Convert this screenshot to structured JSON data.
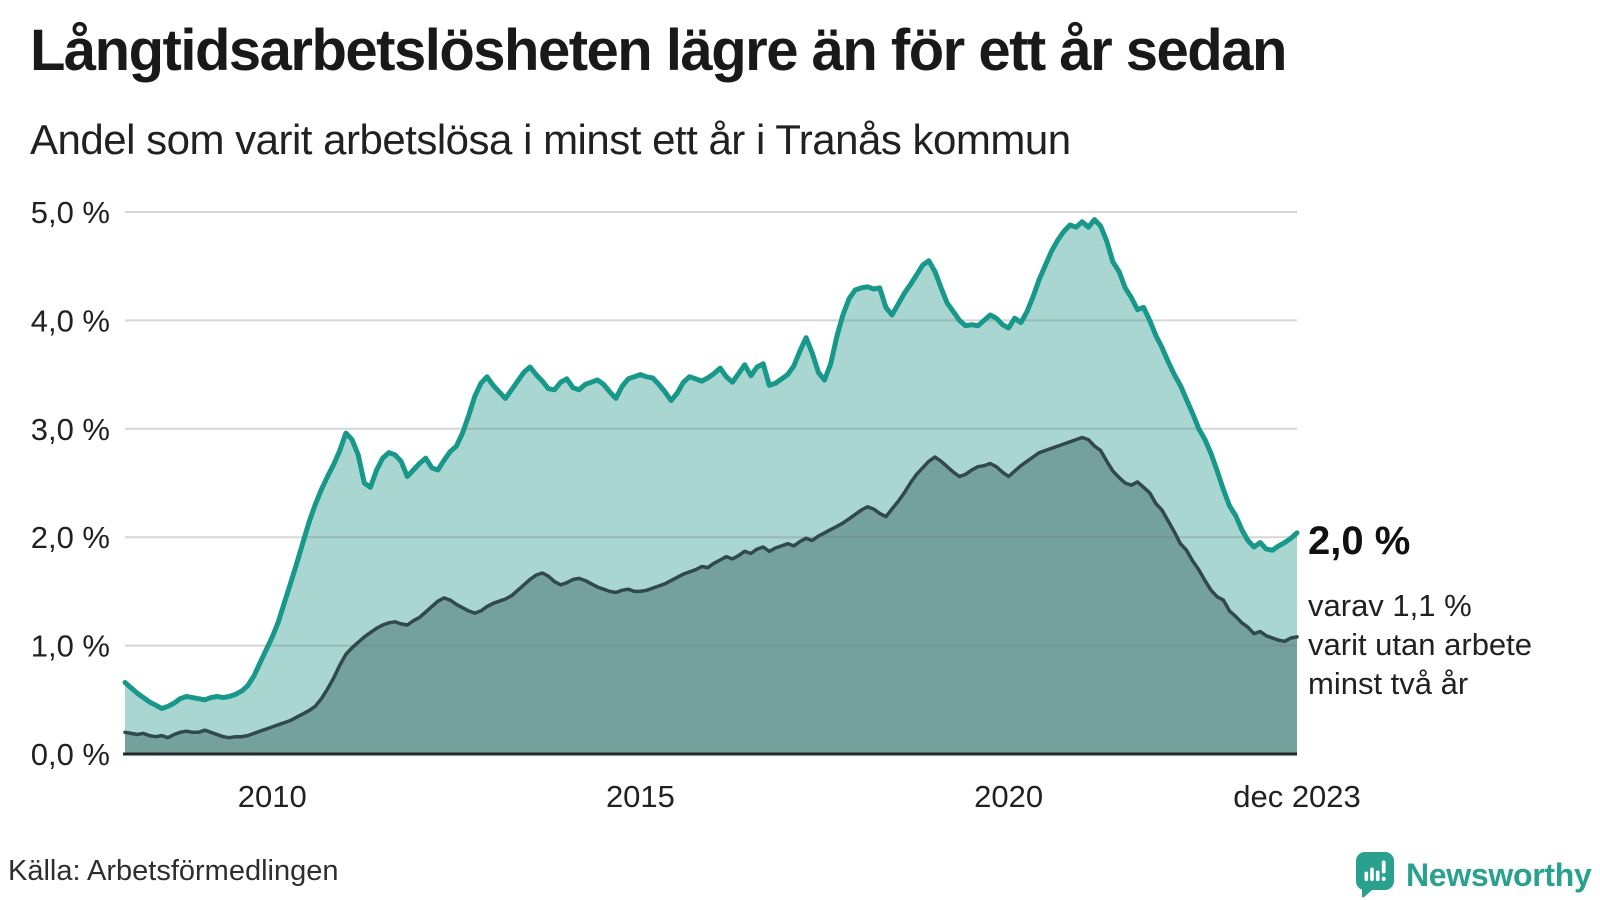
{
  "header": {
    "title": "Långtidsarbetslösheten lägre än för ett år sedan",
    "subtitle": "Andel som varit arbetslösa i minst ett år i Tranås kommun"
  },
  "annotations": {
    "end_value_total": "2,0 %",
    "note_lines": {
      "0": "varav 1,1 %",
      "1": "varit utan arbete",
      "2": "minst två år"
    }
  },
  "footer": {
    "source": "Källa: Arbetsförmedlingen",
    "brand": "Newsworthy"
  },
  "colors": {
    "title_text": "#191919",
    "body_text": "#212121",
    "gridline": "#d9dcde",
    "axis_line": "#20282a",
    "series_total_line": "#18988a",
    "series_total_fill": "#a9d6d0",
    "series_twoyear_line": "#31494a",
    "series_twoyear_fill": "#74a19c",
    "brand_teal": "#2aa08f"
  },
  "chart_data": {
    "type": "area",
    "title": "Långtidsarbetslösheten lägre än för ett år sedan",
    "subtitle": "Andel som varit arbetslösa i minst ett år i Tranås kommun",
    "x_start": "2008-01",
    "x_end": "2023-12",
    "frequency": "monthly",
    "ylim": [
      0,
      5
    ],
    "grid": "horizontal",
    "legend": "none (direct end-of-line labels)",
    "y_ticks": [
      {
        "v": 0,
        "label": "0,0 %"
      },
      {
        "v": 1,
        "label": "1,0 %"
      },
      {
        "v": 2,
        "label": "2,0 %"
      },
      {
        "v": 3,
        "label": "3,0 %"
      },
      {
        "v": 4,
        "label": "4,0 %"
      },
      {
        "v": 5,
        "label": "5,0 %"
      }
    ],
    "x_ticks": [
      {
        "month_index": 24,
        "label": "2010"
      },
      {
        "month_index": 84,
        "label": "2015"
      },
      {
        "month_index": 144,
        "label": "2020"
      },
      {
        "month_index": 191,
        "label": "dec 2023"
      }
    ],
    "series": [
      {
        "name": "Andel som varit arbetslösa i minst ett år",
        "end_label": "2,0 %",
        "color": "#18988a",
        "fill": "#a9d6d0",
        "line_width": 5,
        "values": [
          0.66,
          0.61,
          0.56,
          0.52,
          0.48,
          0.45,
          0.42,
          0.44,
          0.47,
          0.51,
          0.53,
          0.52,
          0.51,
          0.5,
          0.52,
          0.53,
          0.52,
          0.53,
          0.55,
          0.58,
          0.63,
          0.72,
          0.84,
          0.96,
          1.08,
          1.22,
          1.4,
          1.58,
          1.76,
          1.95,
          2.14,
          2.3,
          2.44,
          2.56,
          2.67,
          2.8,
          2.96,
          2.9,
          2.76,
          2.5,
          2.46,
          2.62,
          2.73,
          2.78,
          2.76,
          2.7,
          2.56,
          2.62,
          2.68,
          2.73,
          2.64,
          2.62,
          2.71,
          2.79,
          2.84,
          2.96,
          3.12,
          3.3,
          3.42,
          3.48,
          3.4,
          3.34,
          3.28,
          3.36,
          3.44,
          3.52,
          3.57,
          3.5,
          3.44,
          3.37,
          3.36,
          3.43,
          3.46,
          3.38,
          3.36,
          3.41,
          3.43,
          3.45,
          3.41,
          3.34,
          3.28,
          3.39,
          3.46,
          3.48,
          3.5,
          3.48,
          3.47,
          3.41,
          3.34,
          3.26,
          3.33,
          3.43,
          3.48,
          3.46,
          3.44,
          3.47,
          3.51,
          3.56,
          3.48,
          3.43,
          3.51,
          3.59,
          3.49,
          3.57,
          3.6,
          3.4,
          3.42,
          3.46,
          3.5,
          3.58,
          3.72,
          3.84,
          3.7,
          3.52,
          3.45,
          3.6,
          3.85,
          4.05,
          4.2,
          4.28,
          4.3,
          4.31,
          4.29,
          4.3,
          4.12,
          4.05,
          4.15,
          4.25,
          4.33,
          4.42,
          4.51,
          4.55,
          4.45,
          4.3,
          4.16,
          4.08,
          4.0,
          3.95,
          3.96,
          3.95,
          4.0,
          4.05,
          4.02,
          3.96,
          3.93,
          4.02,
          3.98,
          4.08,
          4.22,
          4.38,
          4.51,
          4.64,
          4.74,
          4.82,
          4.88,
          4.86,
          4.91,
          4.86,
          4.93,
          4.87,
          4.73,
          4.54,
          4.45,
          4.3,
          4.21,
          4.1,
          4.12,
          4.0,
          3.86,
          3.75,
          3.62,
          3.5,
          3.4,
          3.27,
          3.14,
          3.0,
          2.9,
          2.77,
          2.61,
          2.44,
          2.29,
          2.2,
          2.07,
          1.97,
          1.91,
          1.95,
          1.89,
          1.88,
          1.92,
          1.95,
          1.99,
          2.04
        ]
      },
      {
        "name": "varav varit utan arbete minst två år",
        "end_label": "varav 1,1 % varit utan arbete minst två år",
        "color": "#31494a",
        "fill": "#74a19c",
        "line_width": 3.5,
        "values": [
          0.2,
          0.19,
          0.18,
          0.19,
          0.17,
          0.16,
          0.17,
          0.15,
          0.18,
          0.2,
          0.21,
          0.2,
          0.2,
          0.22,
          0.2,
          0.18,
          0.16,
          0.15,
          0.16,
          0.16,
          0.17,
          0.19,
          0.21,
          0.23,
          0.25,
          0.27,
          0.29,
          0.31,
          0.34,
          0.37,
          0.4,
          0.44,
          0.51,
          0.6,
          0.7,
          0.82,
          0.92,
          0.98,
          1.03,
          1.08,
          1.12,
          1.16,
          1.19,
          1.21,
          1.22,
          1.2,
          1.19,
          1.23,
          1.26,
          1.31,
          1.36,
          1.41,
          1.44,
          1.42,
          1.38,
          1.35,
          1.32,
          1.3,
          1.32,
          1.36,
          1.39,
          1.41,
          1.43,
          1.46,
          1.51,
          1.56,
          1.61,
          1.65,
          1.67,
          1.64,
          1.59,
          1.56,
          1.58,
          1.61,
          1.62,
          1.6,
          1.57,
          1.54,
          1.52,
          1.5,
          1.49,
          1.51,
          1.52,
          1.5,
          1.5,
          1.51,
          1.53,
          1.55,
          1.57,
          1.6,
          1.63,
          1.66,
          1.68,
          1.7,
          1.73,
          1.72,
          1.76,
          1.79,
          1.82,
          1.8,
          1.83,
          1.87,
          1.85,
          1.89,
          1.91,
          1.87,
          1.9,
          1.92,
          1.94,
          1.92,
          1.96,
          1.99,
          1.97,
          2.01,
          2.04,
          2.07,
          2.1,
          2.13,
          2.17,
          2.21,
          2.25,
          2.28,
          2.26,
          2.22,
          2.19,
          2.26,
          2.33,
          2.41,
          2.5,
          2.58,
          2.64,
          2.7,
          2.74,
          2.7,
          2.65,
          2.6,
          2.56,
          2.58,
          2.62,
          2.65,
          2.66,
          2.68,
          2.65,
          2.6,
          2.56,
          2.61,
          2.66,
          2.7,
          2.74,
          2.78,
          2.8,
          2.82,
          2.84,
          2.86,
          2.88,
          2.9,
          2.92,
          2.9,
          2.84,
          2.8,
          2.7,
          2.61,
          2.55,
          2.5,
          2.48,
          2.51,
          2.46,
          2.41,
          2.31,
          2.25,
          2.15,
          2.05,
          1.94,
          1.88,
          1.78,
          1.7,
          1.6,
          1.51,
          1.45,
          1.42,
          1.32,
          1.27,
          1.21,
          1.17,
          1.11,
          1.13,
          1.09,
          1.07,
          1.05,
          1.04,
          1.07,
          1.08
        ]
      }
    ]
  }
}
